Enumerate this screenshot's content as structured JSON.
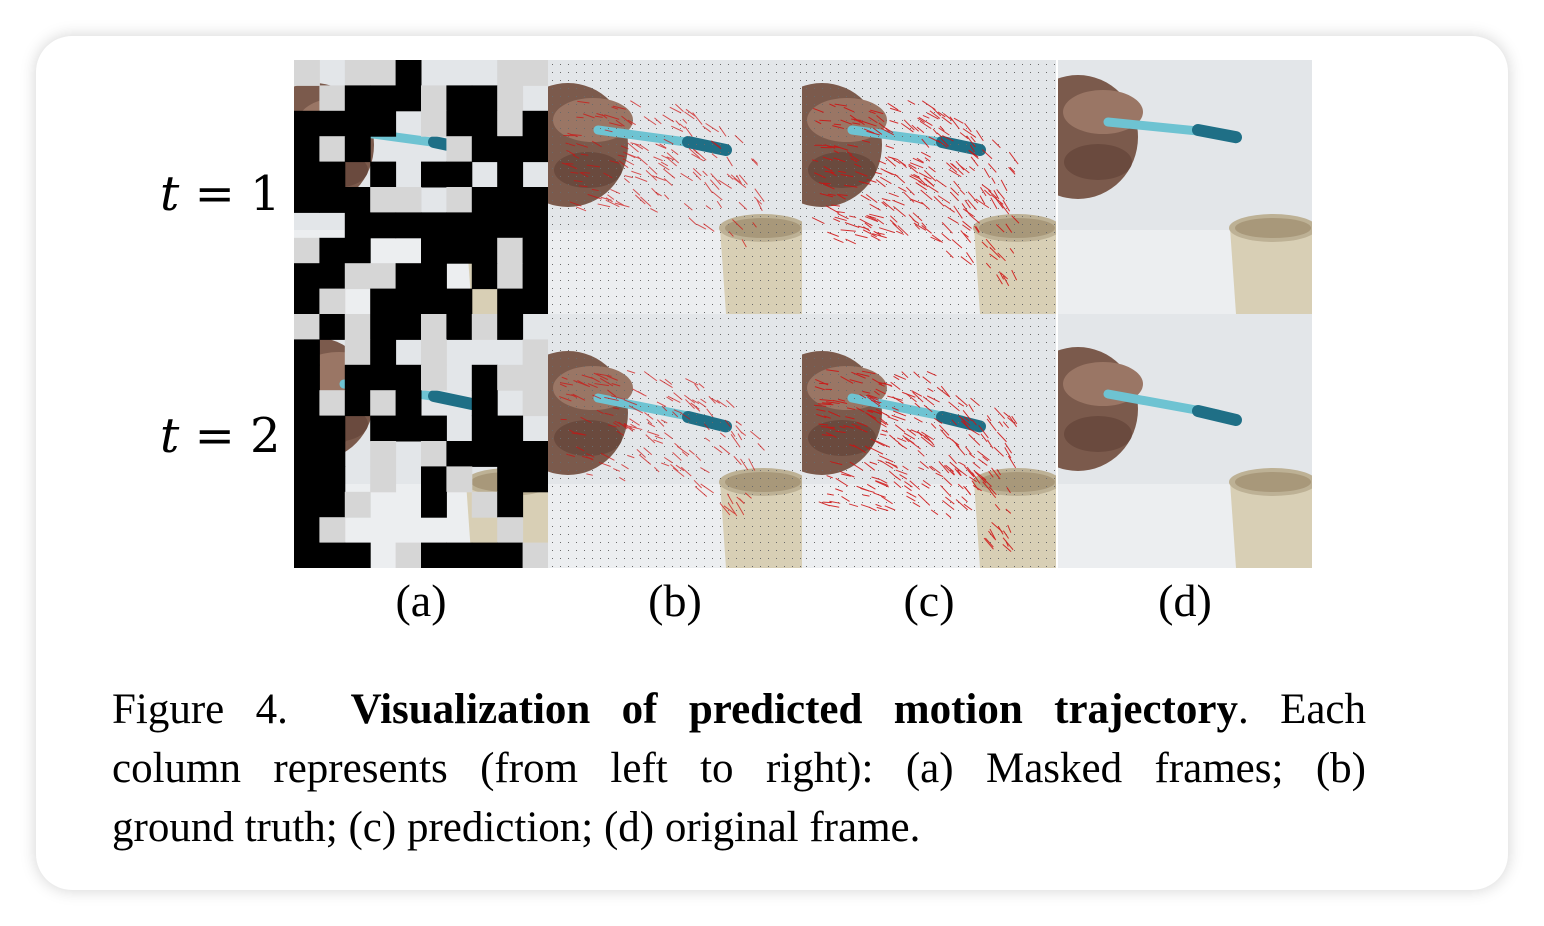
{
  "figure": {
    "row_labels": [
      {
        "var": "t",
        "eq": "=",
        "num": "1"
      },
      {
        "var": "t",
        "eq": "=",
        "num": "2"
      }
    ],
    "column_labels": [
      "(a)",
      "(b)",
      "(c)",
      "(d)"
    ],
    "caption": {
      "prefix": "Figure 4.",
      "title": "Visualization of predicted motion trajectory",
      "line1_rest": ".  Each",
      "line2": "column represents (from left to right):  (a) Masked frames; (b)",
      "line3": "ground truth; (c) prediction; (d) original frame."
    }
  }
}
